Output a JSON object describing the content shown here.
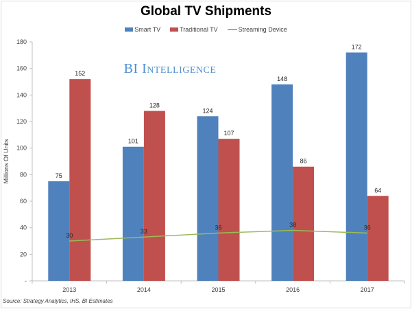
{
  "chart_data": {
    "type": "bar",
    "title": "Global TV Shipments",
    "xlabel": "",
    "ylabel": "Millions Of Units",
    "ylim": [
      0,
      180
    ],
    "yticks": [
      0,
      20,
      40,
      60,
      80,
      100,
      120,
      140,
      160,
      180
    ],
    "ytick_labels": [
      "-",
      "20",
      "40",
      "60",
      "80",
      "100",
      "120",
      "140",
      "160",
      "180"
    ],
    "grid": false,
    "legend_position": "top-center",
    "categories": [
      "2013",
      "2014",
      "2015",
      "2016",
      "2017"
    ],
    "series": [
      {
        "name": "Smart TV",
        "kind": "bar",
        "color": "#4f81bd",
        "values": [
          75,
          101,
          124,
          148,
          172
        ]
      },
      {
        "name": "Traditional TV",
        "kind": "bar",
        "color": "#c0504d",
        "values": [
          152,
          128,
          107,
          86,
          64
        ]
      },
      {
        "name": "Streaming Device",
        "kind": "line",
        "color": "#9bbb59",
        "values": [
          30,
          33,
          36,
          38,
          36
        ]
      }
    ],
    "annotations": [
      "BI Intelligence"
    ],
    "source": "Source: Strategy Analytics, IHS, BI Estimates"
  },
  "watermark": "BI Intelligence",
  "source_note": "Source: Strategy Analytics, IHS, BI Estimates"
}
